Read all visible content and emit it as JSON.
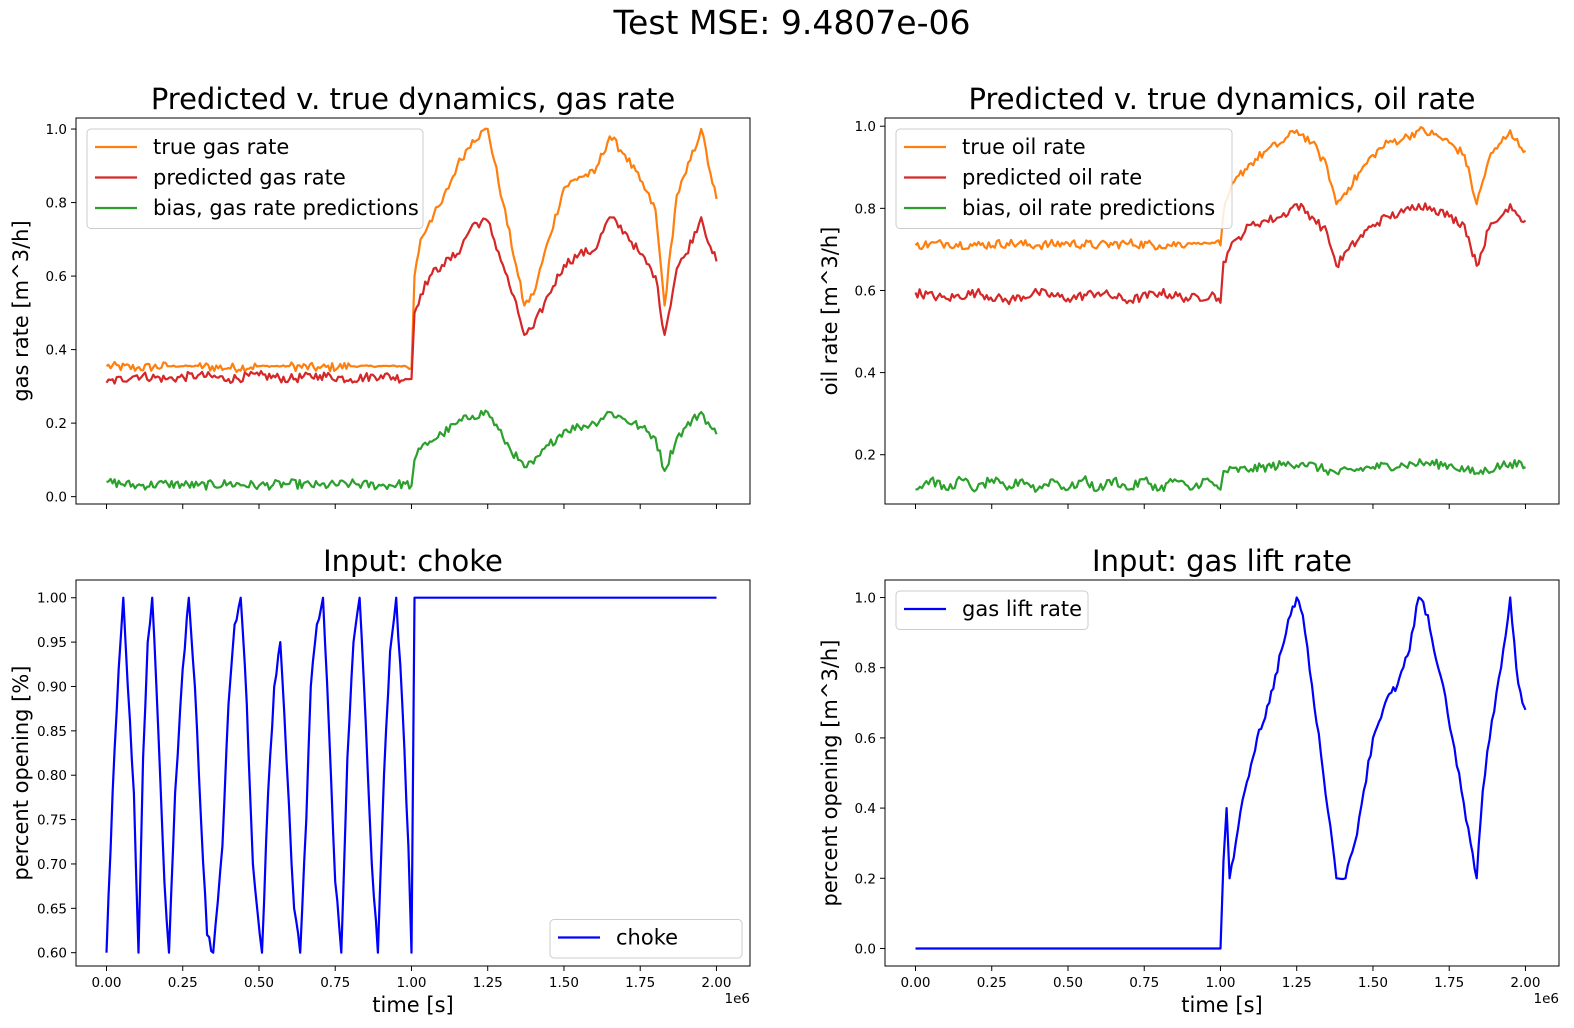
{
  "suptitle": "Test MSE: 9.4807e-06",
  "chart_data": [
    {
      "type": "line",
      "title": "Predicted v. true dynamics, gas rate",
      "xlabel": "",
      "ylabel": "gas rate [m^3/h]",
      "xlim": [
        -0.1,
        2.11
      ],
      "ylim": [
        -0.02,
        1.03
      ],
      "x_offset_label": "",
      "xtick_labels": [],
      "ytick_labels": [
        "0.0",
        "0.2",
        "0.4",
        "0.6",
        "0.8",
        "1.0"
      ],
      "legend_loc": "upper-left",
      "series": [
        {
          "name": "true gas rate",
          "color": "#ff7f0e",
          "x": [
            0,
            0.1,
            0.2,
            0.3,
            0.4,
            0.5,
            0.6,
            0.7,
            0.8,
            0.9,
            0.98,
            1.0,
            1.01,
            1.03,
            1.06,
            1.1,
            1.15,
            1.2,
            1.25,
            1.3,
            1.35,
            1.37,
            1.4,
            1.45,
            1.5,
            1.55,
            1.6,
            1.65,
            1.7,
            1.75,
            1.8,
            1.83,
            1.87,
            1.9,
            1.95,
            1.98,
            2.0
          ],
          "y": [
            0.355,
            0.35,
            0.355,
            0.355,
            0.35,
            0.355,
            0.355,
            0.35,
            0.355,
            0.355,
            0.355,
            0.35,
            0.6,
            0.7,
            0.75,
            0.8,
            0.9,
            0.97,
            1.0,
            0.8,
            0.6,
            0.52,
            0.55,
            0.7,
            0.84,
            0.87,
            0.88,
            0.98,
            0.93,
            0.86,
            0.78,
            0.52,
            0.82,
            0.88,
            1.0,
            0.88,
            0.81
          ]
        },
        {
          "name": "predicted gas rate",
          "color": "#d62728",
          "x": [
            0,
            0.1,
            0.2,
            0.3,
            0.4,
            0.5,
            0.6,
            0.7,
            0.8,
            0.9,
            0.98,
            1.0,
            1.01,
            1.03,
            1.06,
            1.1,
            1.15,
            1.2,
            1.25,
            1.3,
            1.35,
            1.37,
            1.4,
            1.45,
            1.5,
            1.55,
            1.6,
            1.65,
            1.7,
            1.75,
            1.8,
            1.83,
            1.87,
            1.9,
            1.95,
            1.98,
            2.0
          ],
          "y": [
            0.31,
            0.33,
            0.32,
            0.33,
            0.32,
            0.33,
            0.32,
            0.33,
            0.32,
            0.33,
            0.32,
            0.32,
            0.5,
            0.55,
            0.6,
            0.63,
            0.66,
            0.74,
            0.75,
            0.63,
            0.5,
            0.44,
            0.46,
            0.55,
            0.63,
            0.66,
            0.67,
            0.76,
            0.72,
            0.66,
            0.6,
            0.44,
            0.62,
            0.66,
            0.76,
            0.68,
            0.64
          ]
        },
        {
          "name": "bias, gas rate predictions",
          "color": "#2ca02c",
          "x": [
            0,
            0.1,
            0.2,
            0.3,
            0.4,
            0.5,
            0.6,
            0.7,
            0.8,
            0.9,
            0.98,
            1.0,
            1.01,
            1.03,
            1.06,
            1.1,
            1.15,
            1.2,
            1.25,
            1.3,
            1.35,
            1.37,
            1.4,
            1.45,
            1.5,
            1.55,
            1.6,
            1.65,
            1.7,
            1.75,
            1.8,
            1.83,
            1.87,
            1.9,
            1.95,
            1.98,
            2.0
          ],
          "y": [
            0.04,
            0.03,
            0.035,
            0.03,
            0.035,
            0.03,
            0.035,
            0.03,
            0.035,
            0.03,
            0.035,
            0.03,
            0.1,
            0.13,
            0.15,
            0.17,
            0.2,
            0.22,
            0.23,
            0.16,
            0.1,
            0.08,
            0.09,
            0.14,
            0.18,
            0.19,
            0.2,
            0.23,
            0.21,
            0.19,
            0.16,
            0.07,
            0.16,
            0.19,
            0.23,
            0.19,
            0.17
          ]
        }
      ]
    },
    {
      "type": "line",
      "title": "Predicted v. true dynamics, oil rate",
      "xlabel": "",
      "ylabel": "oil rate [m^3/h]",
      "xlim": [
        -0.1,
        2.11
      ],
      "ylim": [
        0.08,
        1.02
      ],
      "x_offset_label": "",
      "xtick_labels": [],
      "ytick_labels": [
        "0.2",
        "0.4",
        "0.6",
        "0.8",
        "1.0"
      ],
      "legend_loc": "upper-left",
      "series": [
        {
          "name": "true oil rate",
          "color": "#ff7f0e",
          "x": [
            0,
            0.1,
            0.2,
            0.3,
            0.4,
            0.5,
            0.6,
            0.7,
            0.8,
            0.9,
            0.98,
            1.0,
            1.01,
            1.03,
            1.06,
            1.1,
            1.15,
            1.2,
            1.25,
            1.3,
            1.35,
            1.38,
            1.42,
            1.5,
            1.55,
            1.6,
            1.65,
            1.7,
            1.75,
            1.8,
            1.84,
            1.88,
            1.92,
            1.95,
            1.98,
            2.0
          ],
          "y": [
            0.71,
            0.715,
            0.71,
            0.715,
            0.71,
            0.715,
            0.71,
            0.715,
            0.71,
            0.715,
            0.715,
            0.71,
            0.79,
            0.84,
            0.88,
            0.91,
            0.94,
            0.96,
            0.99,
            0.96,
            0.9,
            0.81,
            0.85,
            0.93,
            0.96,
            0.97,
            0.99,
            0.98,
            0.96,
            0.93,
            0.81,
            0.92,
            0.96,
            0.99,
            0.95,
            0.94
          ]
        },
        {
          "name": "predicted oil rate",
          "color": "#d62728",
          "x": [
            0,
            0.1,
            0.2,
            0.3,
            0.4,
            0.5,
            0.6,
            0.7,
            0.8,
            0.9,
            0.98,
            1.0,
            1.01,
            1.03,
            1.06,
            1.1,
            1.15,
            1.2,
            1.25,
            1.3,
            1.35,
            1.38,
            1.42,
            1.5,
            1.55,
            1.6,
            1.65,
            1.7,
            1.75,
            1.8,
            1.84,
            1.88,
            1.92,
            1.95,
            1.98,
            2.0
          ],
          "y": [
            0.595,
            0.58,
            0.595,
            0.575,
            0.595,
            0.58,
            0.595,
            0.575,
            0.595,
            0.58,
            0.59,
            0.57,
            0.67,
            0.7,
            0.73,
            0.76,
            0.77,
            0.78,
            0.81,
            0.78,
            0.74,
            0.66,
            0.7,
            0.76,
            0.78,
            0.79,
            0.81,
            0.8,
            0.78,
            0.76,
            0.66,
            0.75,
            0.78,
            0.81,
            0.78,
            0.77
          ]
        },
        {
          "name": "bias, oil rate predictions",
          "color": "#2ca02c",
          "x": [
            0,
            0.05,
            0.1,
            0.15,
            0.2,
            0.25,
            0.3,
            0.35,
            0.4,
            0.45,
            0.5,
            0.55,
            0.6,
            0.65,
            0.7,
            0.75,
            0.8,
            0.85,
            0.9,
            0.95,
            0.98,
            1.0,
            1.01,
            1.1,
            1.2,
            1.27,
            1.38,
            1.5,
            1.6,
            1.66,
            1.75,
            1.84,
            1.95,
            2.0
          ],
          "y": [
            0.115,
            0.14,
            0.115,
            0.14,
            0.115,
            0.14,
            0.115,
            0.14,
            0.115,
            0.14,
            0.115,
            0.14,
            0.115,
            0.14,
            0.115,
            0.14,
            0.115,
            0.14,
            0.115,
            0.14,
            0.125,
            0.115,
            0.16,
            0.165,
            0.175,
            0.18,
            0.155,
            0.17,
            0.175,
            0.18,
            0.175,
            0.155,
            0.18,
            0.17
          ]
        }
      ]
    },
    {
      "type": "line",
      "title": "Input: choke",
      "xlabel": "time [s]",
      "ylabel": "percent opening [%]",
      "xlim": [
        -0.1,
        2.11
      ],
      "ylim": [
        0.585,
        1.02
      ],
      "x_offset_label": "1e6",
      "xtick_labels": [
        "0.00",
        "0.25",
        "0.50",
        "0.75",
        "1.00",
        "1.25",
        "1.50",
        "1.75",
        "2.00"
      ],
      "ytick_labels": [
        "0.60",
        "0.65",
        "0.70",
        "0.75",
        "0.80",
        "0.85",
        "0.90",
        "0.95",
        "1.00"
      ],
      "legend_loc": "lower-right",
      "series": [
        {
          "name": "choke",
          "color": "#0000ff",
          "x": [
            0,
            0.02,
            0.04,
            0.055,
            0.07,
            0.09,
            0.105,
            0.12,
            0.135,
            0.15,
            0.17,
            0.19,
            0.205,
            0.225,
            0.25,
            0.27,
            0.29,
            0.31,
            0.33,
            0.35,
            0.38,
            0.4,
            0.42,
            0.44,
            0.46,
            0.48,
            0.51,
            0.53,
            0.55,
            0.57,
            0.59,
            0.615,
            0.635,
            0.655,
            0.67,
            0.69,
            0.71,
            0.73,
            0.75,
            0.77,
            0.79,
            0.81,
            0.83,
            0.85,
            0.87,
            0.89,
            0.91,
            0.93,
            0.95,
            0.97,
            0.99,
            1.0,
            1.01,
            2.0
          ],
          "y": [
            0.6,
            0.78,
            0.92,
            1.0,
            0.9,
            0.78,
            0.6,
            0.82,
            0.95,
            1.0,
            0.85,
            0.68,
            0.6,
            0.78,
            0.92,
            1.0,
            0.9,
            0.75,
            0.62,
            0.6,
            0.72,
            0.88,
            0.97,
            1.0,
            0.88,
            0.7,
            0.6,
            0.78,
            0.9,
            0.95,
            0.82,
            0.65,
            0.6,
            0.75,
            0.9,
            0.97,
            1.0,
            0.85,
            0.68,
            0.6,
            0.82,
            0.95,
            1.0,
            0.86,
            0.7,
            0.6,
            0.8,
            0.94,
            1.0,
            0.88,
            0.72,
            0.6,
            1.0,
            1.0
          ]
        }
      ]
    },
    {
      "type": "line",
      "title": "Input: gas lift rate",
      "xlabel": "time [s]",
      "ylabel": "percent opening [m^3/h]",
      "xlim": [
        -0.1,
        2.11
      ],
      "ylim": [
        -0.05,
        1.05
      ],
      "x_offset_label": "1e6",
      "xtick_labels": [
        "0.00",
        "0.25",
        "0.50",
        "0.75",
        "1.00",
        "1.25",
        "1.50",
        "1.75",
        "2.00"
      ],
      "ytick_labels": [
        "0.0",
        "0.2",
        "0.4",
        "0.6",
        "0.8",
        "1.0"
      ],
      "legend_loc": "upper-left",
      "series": [
        {
          "name": "gas lift rate",
          "color": "#0000ff",
          "x": [
            0,
            1.0,
            1.01,
            1.02,
            1.03,
            1.05,
            1.08,
            1.12,
            1.16,
            1.2,
            1.23,
            1.25,
            1.27,
            1.3,
            1.33,
            1.36,
            1.38,
            1.41,
            1.44,
            1.47,
            1.5,
            1.54,
            1.58,
            1.62,
            1.65,
            1.68,
            1.7,
            1.73,
            1.76,
            1.79,
            1.82,
            1.84,
            1.86,
            1.89,
            1.92,
            1.95,
            1.97,
            1.99,
            2.0
          ],
          "y": [
            0.0,
            0.0,
            0.25,
            0.4,
            0.2,
            0.3,
            0.45,
            0.6,
            0.7,
            0.85,
            0.95,
            1.0,
            0.95,
            0.75,
            0.55,
            0.35,
            0.2,
            0.2,
            0.3,
            0.45,
            0.6,
            0.7,
            0.75,
            0.85,
            1.0,
            0.95,
            0.85,
            0.75,
            0.6,
            0.45,
            0.3,
            0.2,
            0.45,
            0.65,
            0.8,
            1.0,
            0.8,
            0.7,
            0.68
          ]
        }
      ]
    }
  ]
}
